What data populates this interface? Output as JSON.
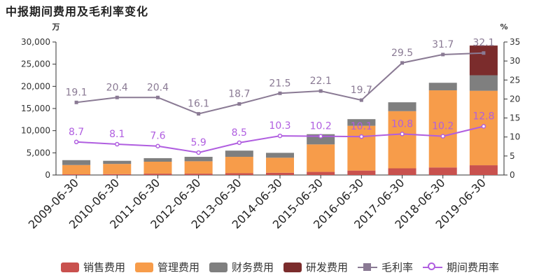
{
  "chart_data": {
    "type": "bar",
    "title": "中报期间费用及毛利率变化",
    "ylabel": "万",
    "y2label": "%",
    "ylim": [
      0,
      30000
    ],
    "y2lim": [
      0,
      35
    ],
    "yticks": [
      "0",
      "5,000",
      "10,000",
      "15,000",
      "20,000",
      "25,000",
      "30,000"
    ],
    "y2ticks": [
      "0",
      "5",
      "10",
      "15",
      "20",
      "25",
      "30",
      "35"
    ],
    "categories": [
      "2009-06-30",
      "2010-06-30",
      "2011-06-30",
      "2012-06-30",
      "2013-06-30",
      "2014-06-30",
      "2015-06-30",
      "2016-06-30",
      "2017-06-30",
      "2018-06-30",
      "2019-06-30"
    ],
    "series": [
      {
        "name": "销售费用",
        "kind": "stacked-bar",
        "color": "#c9514e",
        "values": [
          150,
          200,
          300,
          300,
          400,
          500,
          700,
          1000,
          1500,
          1700,
          2200
        ]
      },
      {
        "name": "管理费用",
        "kind": "stacked-bar",
        "color": "#f79c4a",
        "values": [
          2100,
          2300,
          2700,
          2800,
          3700,
          3400,
          6200,
          10100,
          12900,
          17400,
          16800
        ]
      },
      {
        "name": "财务费用",
        "kind": "stacked-bar",
        "color": "#7f7f7f",
        "values": [
          1100,
          700,
          800,
          1000,
          1400,
          1100,
          2300,
          1500,
          2000,
          1700,
          3500
        ]
      },
      {
        "name": "研发费用",
        "kind": "stacked-bar",
        "color": "#7b2c2c",
        "values": [
          0,
          0,
          0,
          0,
          0,
          0,
          0,
          0,
          0,
          0,
          6700
        ]
      },
      {
        "name": "毛利率",
        "kind": "line-right",
        "marker": "square",
        "color": "#8a7a94",
        "values": [
          19.1,
          20.4,
          20.4,
          16.1,
          18.7,
          21.5,
          22.1,
          19.7,
          29.5,
          31.7,
          32.1
        ],
        "labels": [
          "19.1",
          "20.4",
          "20.4",
          "16.1",
          "18.7",
          "21.5",
          "22.1",
          "19.7",
          "29.5",
          "31.7",
          "32.1"
        ]
      },
      {
        "name": "期间费用率",
        "kind": "line-right",
        "marker": "circle",
        "color": "#b05ee0",
        "values": [
          8.7,
          8.1,
          7.6,
          5.9,
          8.5,
          10.3,
          10.2,
          10.1,
          10.8,
          10.2,
          12.8
        ],
        "labels": [
          "8.7",
          "8.1",
          "7.6",
          "5.9",
          "8.5",
          "10.3",
          "10.2",
          "10.1",
          "10.8",
          "10.2",
          "12.8"
        ]
      }
    ],
    "grid": false,
    "legend": "bottom"
  }
}
